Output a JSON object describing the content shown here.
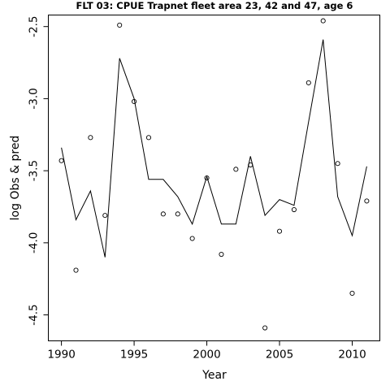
{
  "chart_data": {
    "type": "line",
    "title": "FLT 03: CPUE Trapnet fleet area 23, 42 and 47, age 6",
    "xlabel": "Year",
    "ylabel": "log Obs & pred",
    "xlim": [
      1989.1,
      2011.9
    ],
    "ylim": [
      -4.68,
      -2.42
    ],
    "x_ticks": [
      "1990",
      "1995",
      "2000",
      "2005",
      "2010"
    ],
    "y_ticks": [
      "-2.5",
      "-3.0",
      "-3.5",
      "-4.0",
      "-4.5"
    ],
    "grid": false,
    "series": [
      {
        "role": "observed",
        "style": "points",
        "x": [
          1990,
          1991,
          1992,
          1993,
          1994,
          1995,
          1996,
          1997,
          1998,
          1999,
          2000,
          2001,
          2002,
          2003,
          2004,
          2005,
          2006,
          2007,
          2008,
          2009,
          2010,
          2011
        ],
        "values": [
          -3.43,
          -4.19,
          -3.27,
          -3.81,
          -2.49,
          -3.02,
          -3.27,
          -3.8,
          -3.8,
          -3.97,
          -3.55,
          -4.08,
          -3.49,
          -3.46,
          -4.59,
          -3.92,
          -3.77,
          -2.89,
          -2.46,
          -3.45,
          -4.35,
          -3.71
        ]
      },
      {
        "role": "predicted",
        "style": "line",
        "x": [
          1990,
          1991,
          1992,
          1993,
          1994,
          1995,
          1996,
          1997,
          1998,
          1999,
          2000,
          2001,
          2002,
          2003,
          2004,
          2005,
          2006,
          2007,
          2008,
          2009,
          2010,
          2011
        ],
        "values": [
          -3.34,
          -3.84,
          -3.64,
          -4.1,
          -2.72,
          -3.0,
          -3.56,
          -3.56,
          -3.68,
          -3.87,
          -3.54,
          -3.87,
          -3.87,
          -3.4,
          -3.81,
          -3.7,
          -3.74,
          -3.16,
          -2.59,
          -3.68,
          -3.95,
          -3.47
        ]
      }
    ]
  }
}
